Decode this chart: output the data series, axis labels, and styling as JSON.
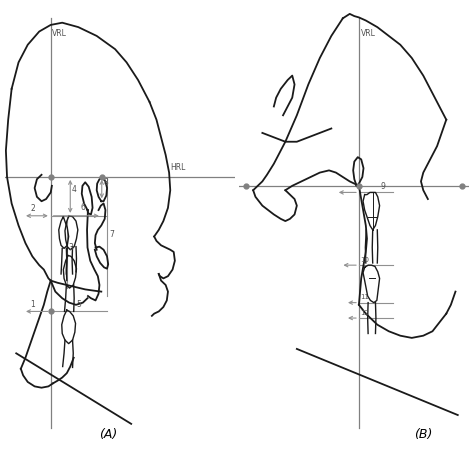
{
  "fig_width": 4.74,
  "fig_height": 4.74,
  "dpi": 100,
  "bg_color": "#ffffff",
  "line_color": "#1a1a1a",
  "ref_line_color": "#808080",
  "arrow_color": "#909090",
  "label_color": "#505050",
  "panel_A_label": "(A)",
  "panel_B_label": "(B)",
  "VRL_label": "VRL",
  "HRL_label": "HRL"
}
